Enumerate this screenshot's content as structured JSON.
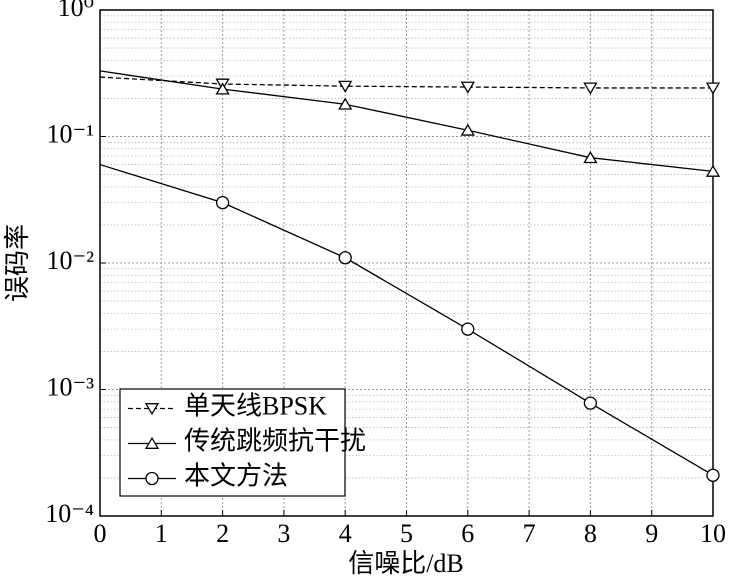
{
  "chart_data": {
    "type": "line",
    "xlabel": "信噪比/dB",
    "ylabel": "误码率",
    "x": [
      0,
      2,
      4,
      6,
      8,
      10
    ],
    "series": [
      {
        "name": "单天线BPSK",
        "color": "#000000",
        "dash": true,
        "marker": "v",
        "values": [
          0.295,
          0.26,
          0.25,
          0.246,
          0.242,
          0.242
        ]
      },
      {
        "name": "传统跳频抗干扰",
        "color": "#000000",
        "dash": false,
        "marker": "^",
        "values": [
          0.33,
          0.237,
          0.18,
          0.112,
          0.068,
          0.053
        ]
      },
      {
        "name": "本文方法",
        "color": "#000000",
        "dash": false,
        "marker": "o",
        "values": [
          0.06,
          0.03,
          0.011,
          0.003,
          0.00078,
          0.00021
        ]
      }
    ],
    "xlim": [
      0,
      10
    ],
    "xticks": [
      0,
      1,
      2,
      3,
      4,
      5,
      6,
      7,
      8,
      9,
      10
    ],
    "ylim": [
      0.0001,
      1
    ],
    "log_y": true,
    "yticks": [
      {
        "value": 0.0001,
        "label": "10⁻⁴"
      },
      {
        "value": 0.001,
        "label": "10⁻³"
      },
      {
        "value": 0.01,
        "label": "10⁻²"
      },
      {
        "value": 0.1,
        "label": "10⁻¹"
      },
      {
        "value": 1,
        "label": "10⁰"
      }
    ],
    "grid": true,
    "legend": "lower left"
  }
}
